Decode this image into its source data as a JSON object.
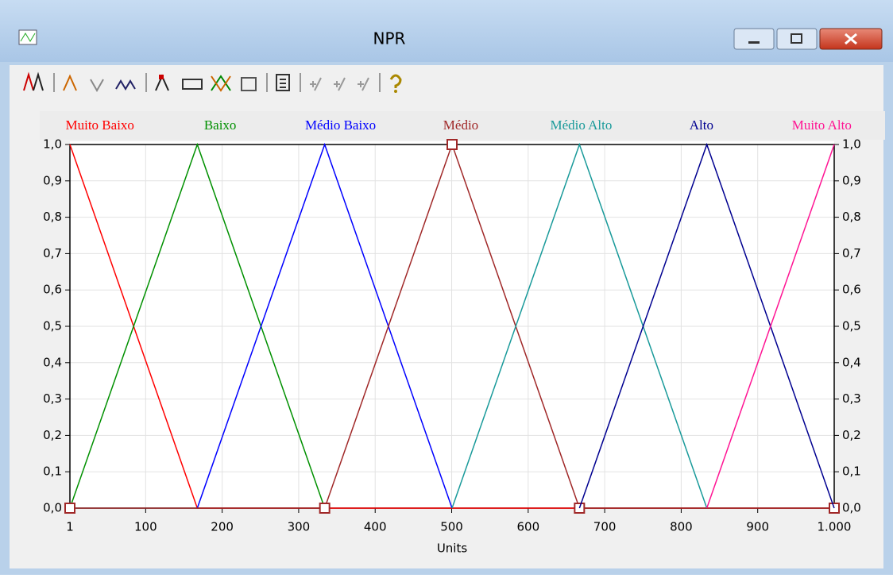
{
  "window": {
    "title": "NPR"
  },
  "chart_data": {
    "type": "line",
    "xlabel": "Units",
    "xlim": [
      1,
      1000
    ],
    "xticks": [
      1,
      100,
      200,
      300,
      400,
      500,
      600,
      700,
      800,
      900,
      {
        "value": 1000,
        "label": "1.000"
      }
    ],
    "ylim": [
      0,
      1
    ],
    "yticks": [
      {
        "value": 0,
        "label": "0,0"
      },
      {
        "value": 0.1,
        "label": "0,1"
      },
      {
        "value": 0.2,
        "label": "0,2"
      },
      {
        "value": 0.3,
        "label": "0,3"
      },
      {
        "value": 0.4,
        "label": "0,4"
      },
      {
        "value": 0.5,
        "label": "0,5"
      },
      {
        "value": 0.6,
        "label": "0,6"
      },
      {
        "value": 0.7,
        "label": "0,7"
      },
      {
        "value": 0.8,
        "label": "0,8"
      },
      {
        "value": 0.9,
        "label": "0,9"
      },
      {
        "value": 1,
        "label": "1,0"
      }
    ],
    "grid": true,
    "legend": "top",
    "series": [
      {
        "name": "Muito Baixo",
        "color": "#ff0000",
        "x": [
          1,
          167.5,
          1000
        ],
        "values": [
          1,
          0,
          0
        ]
      },
      {
        "name": "Baixo",
        "color": "#009000",
        "x": [
          1,
          167.5,
          334
        ],
        "values": [
          0,
          1,
          0
        ]
      },
      {
        "name": "Médio Baixo",
        "color": "#0000ff",
        "x": [
          167.5,
          334,
          500.5
        ],
        "values": [
          0,
          1,
          0
        ]
      },
      {
        "name": "Médio",
        "color": "#a02828",
        "x": [
          1,
          334,
          500.5,
          667,
          1000
        ],
        "values": [
          0,
          0,
          1,
          0,
          0
        ],
        "markers": true
      },
      {
        "name": "Médio Alto",
        "color": "#199a9a",
        "x": [
          500.5,
          667,
          833.5
        ],
        "values": [
          0,
          1,
          0
        ]
      },
      {
        "name": "Alto",
        "color": "#000090",
        "x": [
          667,
          833.5,
          1000
        ],
        "values": [
          0,
          1,
          0
        ]
      },
      {
        "name": "Muito Alto",
        "color": "#ff1493",
        "x": [
          833.5,
          1000
        ],
        "values": [
          0,
          1
        ]
      }
    ]
  }
}
